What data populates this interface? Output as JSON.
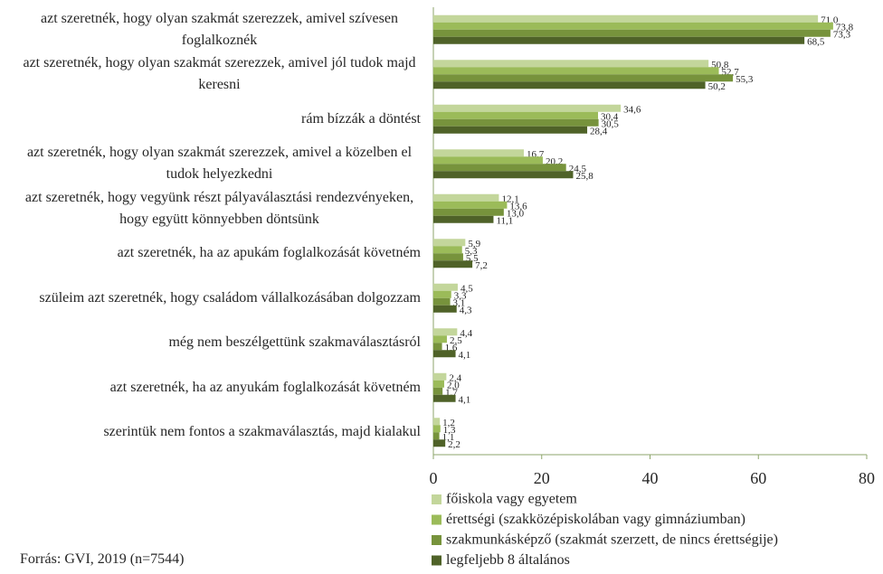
{
  "chart_data": {
    "type": "barh",
    "categories": [
      "azt szeretnék, hogy olyan szakmát szerezzek, amivel szívesen foglalkoznék",
      "azt szeretnék, hogy olyan szakmát szerezzek, amivel jól tudok majd keresni",
      "rám bízzák a döntést",
      "azt szeretnék, hogy olyan szakmát szerezzek, amivel a közelben el tudok helyezkedni",
      "azt szeretnék, hogy vegyünk részt pályaválasztási rendezvényeken, hogy együtt könnyebben döntsünk",
      "azt szeretnék, ha az apukám foglalkozását követném",
      "szüleim azt szeretnék, hogy családom vállalkozásában dolgozzam",
      "még nem beszélgettünk szakmaválasztásról",
      "azt szeretnék, ha az anyukám foglalkozását követném",
      "szerintük nem fontos a szakmaválasztás, majd kialakul"
    ],
    "series": [
      {
        "name": "főiskola vagy egyetem",
        "color": "#c3d69b",
        "values": [
          71.0,
          50.8,
          34.6,
          16.7,
          12.1,
          5.9,
          4.5,
          4.4,
          2.4,
          1.2
        ],
        "value_labels": [
          "71,0",
          "50,8",
          "34,6",
          "16,7",
          "12,1",
          "5,9",
          "4,5",
          "4,4",
          "2,4",
          "1,2"
        ]
      },
      {
        "name": "érettségi (szakközépiskolában vagy gimnáziumban)",
        "color": "#9bbb59",
        "values": [
          73.8,
          52.7,
          30.4,
          20.2,
          13.6,
          5.3,
          3.3,
          2.5,
          2.0,
          1.3
        ],
        "value_labels": [
          "73,8",
          "52,7",
          "30,4",
          "20,2",
          "13,6",
          "5,3",
          "3,3",
          "2,5",
          "2,0",
          "1,3"
        ]
      },
      {
        "name": "szakmunkásképző (szakmát szerzett, de nincs érettségije)",
        "color": "#77933c",
        "values": [
          73.3,
          55.3,
          30.5,
          24.5,
          13.0,
          5.5,
          3.1,
          1.6,
          1.7,
          1.1
        ],
        "value_labels": [
          "73,3",
          "55,3",
          "30,5",
          "24,5",
          "13,0",
          "5,5",
          "3,1",
          "1,6",
          "1,7",
          "1,1"
        ]
      },
      {
        "name": "legfeljebb 8 általános",
        "color": "#4f6228",
        "values": [
          68.5,
          50.2,
          28.4,
          25.8,
          11.1,
          7.2,
          4.3,
          4.1,
          4.1,
          2.2
        ],
        "value_labels": [
          "68,5",
          "50,2",
          "28,4",
          "25,8",
          "11,1",
          "7,2",
          "4,3",
          "4,1",
          "4,1",
          "2,2"
        ]
      }
    ],
    "xlim": [
      0,
      80
    ],
    "xticks": [
      0,
      20,
      40,
      60,
      80
    ],
    "legend": "bottom-right",
    "source": "Forrás: GVI, 2019 (n=7544)"
  }
}
